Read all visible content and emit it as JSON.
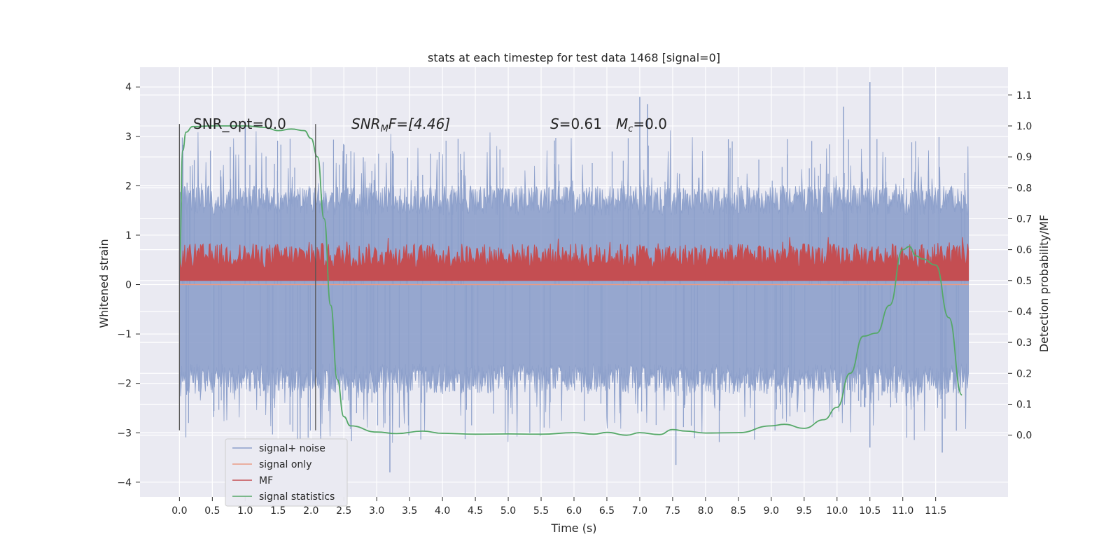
{
  "chart_data": {
    "type": "line",
    "title": "stats at each timestep for test data 1468 [signal=0]",
    "xlabel": "Time (s)",
    "ylabel": "Whitened strain",
    "y2label": "Detection probability/MF",
    "xlim": [
      -0.6,
      12.6
    ],
    "ylim": [
      -4.3,
      4.4
    ],
    "y2lim": [
      -0.2,
      1.19
    ],
    "x_ticks": [
      0.0,
      0.5,
      1.0,
      1.5,
      2.0,
      2.5,
      3.0,
      3.5,
      4.0,
      4.5,
      5.0,
      5.5,
      6.0,
      6.5,
      7.0,
      7.5,
      8.0,
      8.5,
      9.0,
      9.5,
      10.0,
      10.5,
      11.0,
      11.5
    ],
    "x_tick_labels": [
      "0.0",
      "0.5",
      "1.0",
      "1.5",
      "2.0",
      "2.5",
      "3.0",
      "3.5",
      "4.0",
      "4.5",
      "5.0",
      "5.5",
      "6.0",
      "6.5",
      "7.0",
      "7.5",
      "8.0",
      "8.5",
      "9.0",
      "9.5",
      "10.0",
      "10.5",
      "11.0",
      "11.5"
    ],
    "y_ticks": [
      4,
      3,
      2,
      1,
      0,
      -1,
      -2,
      -3,
      -4
    ],
    "y_tick_labels": [
      "4",
      "3",
      "2",
      "1",
      "0",
      "−1",
      "−2",
      "−3",
      "−4"
    ],
    "y2_ticks": [
      1.1,
      1.0,
      0.9,
      0.8,
      0.7,
      0.6,
      0.5,
      0.4,
      0.3,
      0.2,
      0.1,
      0.0
    ],
    "y2_tick_labels": [
      "1.1",
      "1.0",
      "0.9",
      "0.8",
      "0.7",
      "0.6",
      "0.5",
      "0.4",
      "0.3",
      "0.2",
      "0.1",
      "0.0"
    ],
    "grid": true,
    "legend_position": "lower-left",
    "annotations": {
      "snr_opt": "SNR_opt=0.0",
      "snr_mf_label": "SNR",
      "snr_mf_sub": "M",
      "snr_mf_rest": "F=[4.46]",
      "s_label": "S",
      "s_rest": "=0.61",
      "mc_label": "M",
      "mc_sub": "c",
      "mc_rest": "=0.0"
    },
    "vertical_markers": [
      0.0,
      2.07
    ],
    "vertical_marker_range": [
      -2.95,
      3.25
    ],
    "series": [
      {
        "name": "signal+ noise",
        "color": "#8da0cb",
        "kind": "noise",
        "x_range": [
          0.0,
          12.0
        ],
        "typical_range": [
          -1.9,
          1.6
        ],
        "extreme_range": [
          -3.8,
          4.1
        ],
        "peaks": [
          {
            "x": 7.0,
            "y": 3.8
          },
          {
            "x": 7.12,
            "y": 3.65
          },
          {
            "x": 10.5,
            "y": 4.1
          },
          {
            "x": 10.1,
            "y": 3.6
          },
          {
            "x": 1.0,
            "y": 3.3
          },
          {
            "x": 3.2,
            "y": -3.8
          },
          {
            "x": 7.55,
            "y": -3.65
          },
          {
            "x": 10.5,
            "y": -3.3
          },
          {
            "x": 11.6,
            "y": -3.4
          }
        ]
      },
      {
        "name": "signal only",
        "color": "#e99b84",
        "kind": "flat",
        "x_range": [
          0.0,
          12.0
        ],
        "values": [
          0.0
        ]
      },
      {
        "name": "MF",
        "color": "#c44e52",
        "kind": "band",
        "x_range": [
          0.0,
          12.0
        ],
        "baseline": 0.5,
        "band_range": [
          0.5,
          0.62
        ],
        "peak_max": 0.64
      },
      {
        "name": "signal statistics",
        "color": "#55a868",
        "kind": "line",
        "x": [
          0.0,
          0.05,
          0.1,
          0.2,
          0.5,
          1.0,
          1.3,
          1.5,
          1.7,
          1.9,
          2.0,
          2.1,
          2.2,
          2.3,
          2.4,
          2.5,
          2.6,
          3.0,
          3.3,
          3.7,
          4.0,
          4.5,
          5.0,
          5.5,
          6.0,
          6.3,
          6.5,
          6.8,
          7.0,
          7.3,
          7.5,
          7.7,
          8.0,
          8.5,
          9.0,
          9.2,
          9.5,
          9.8,
          10.0,
          10.2,
          10.4,
          10.6,
          10.8,
          11.0,
          11.1,
          11.2,
          11.3,
          11.5,
          11.7,
          11.9
        ],
        "y": [
          0.55,
          0.92,
          0.98,
          0.998,
          1.0,
          1.0,
          0.995,
          0.985,
          0.99,
          0.985,
          0.96,
          0.9,
          0.7,
          0.42,
          0.18,
          0.06,
          0.03,
          0.01,
          0.005,
          0.013,
          0.006,
          0.003,
          0.004,
          0.003,
          0.008,
          0.003,
          0.009,
          0.0,
          0.008,
          0.002,
          0.018,
          0.013,
          0.007,
          0.008,
          0.03,
          0.035,
          0.022,
          0.05,
          0.09,
          0.2,
          0.32,
          0.33,
          0.42,
          0.6,
          0.61,
          0.58,
          0.57,
          0.55,
          0.38,
          0.13
        ]
      }
    ]
  }
}
